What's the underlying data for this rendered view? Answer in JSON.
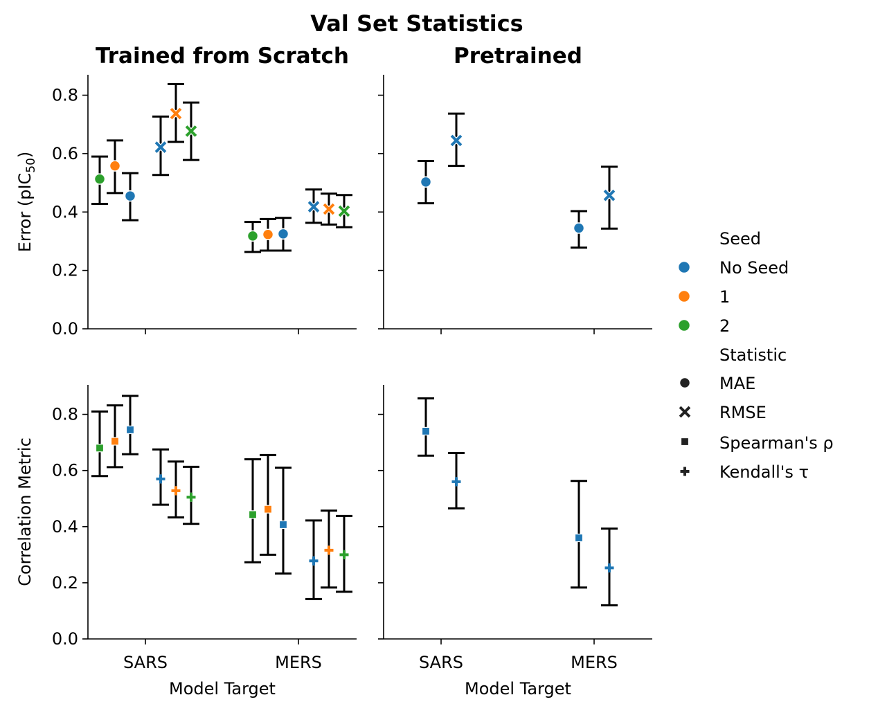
{
  "figure": {
    "suptitle": "Val Set Statistics"
  },
  "legend": {
    "seed_title": "Seed",
    "seeds": [
      {
        "label": "No Seed",
        "color": "#1f77b4"
      },
      {
        "label": "1",
        "color": "#ff7f0e"
      },
      {
        "label": "2",
        "color": "#2ca02c"
      }
    ],
    "stat_title": "Statistic",
    "stats": [
      {
        "label": "MAE",
        "marker": "circle"
      },
      {
        "label": "RMSE",
        "marker": "x"
      },
      {
        "label": "Spearman's ρ",
        "marker": "square"
      },
      {
        "label": "Kendall's τ",
        "marker": "plus"
      }
    ]
  },
  "chart_data": [
    {
      "type": "scatter",
      "title": "Trained from Scratch",
      "row": "error",
      "ylabel": "Error (pIC50)",
      "xlabel": "",
      "categories": [
        "SARS",
        "MERS"
      ],
      "ylim": [
        0,
        0.87
      ],
      "yticks": [
        "0.0",
        "0.2",
        "0.4",
        "0.6",
        "0.8"
      ],
      "points": [
        {
          "target": "SARS",
          "stat": "MAE",
          "seed": "2",
          "y": 0.513,
          "lo": 0.428,
          "hi": 0.59
        },
        {
          "target": "SARS",
          "stat": "MAE",
          "seed": "1",
          "y": 0.558,
          "lo": 0.465,
          "hi": 0.645
        },
        {
          "target": "SARS",
          "stat": "MAE",
          "seed": "No Seed",
          "y": 0.455,
          "lo": 0.372,
          "hi": 0.533
        },
        {
          "target": "SARS",
          "stat": "RMSE",
          "seed": "No Seed",
          "y": 0.622,
          "lo": 0.527,
          "hi": 0.727
        },
        {
          "target": "SARS",
          "stat": "RMSE",
          "seed": "1",
          "y": 0.737,
          "lo": 0.64,
          "hi": 0.838
        },
        {
          "target": "SARS",
          "stat": "RMSE",
          "seed": "2",
          "y": 0.677,
          "lo": 0.578,
          "hi": 0.775
        },
        {
          "target": "MERS",
          "stat": "MAE",
          "seed": "2",
          "y": 0.318,
          "lo": 0.263,
          "hi": 0.366
        },
        {
          "target": "MERS",
          "stat": "MAE",
          "seed": "1",
          "y": 0.323,
          "lo": 0.268,
          "hi": 0.376
        },
        {
          "target": "MERS",
          "stat": "MAE",
          "seed": "No Seed",
          "y": 0.325,
          "lo": 0.268,
          "hi": 0.38
        },
        {
          "target": "MERS",
          "stat": "RMSE",
          "seed": "No Seed",
          "y": 0.418,
          "lo": 0.363,
          "hi": 0.477
        },
        {
          "target": "MERS",
          "stat": "RMSE",
          "seed": "1",
          "y": 0.41,
          "lo": 0.357,
          "hi": 0.463
        },
        {
          "target": "MERS",
          "stat": "RMSE",
          "seed": "2",
          "y": 0.403,
          "lo": 0.348,
          "hi": 0.458
        }
      ]
    },
    {
      "type": "scatter",
      "title": "Pretrained",
      "row": "error",
      "ylabel": "",
      "xlabel": "",
      "categories": [
        "SARS",
        "MERS"
      ],
      "ylim": [
        0,
        0.87
      ],
      "points": [
        {
          "target": "SARS",
          "stat": "MAE",
          "seed": "No Seed",
          "y": 0.503,
          "lo": 0.43,
          "hi": 0.575
        },
        {
          "target": "SARS",
          "stat": "RMSE",
          "seed": "No Seed",
          "y": 0.645,
          "lo": 0.558,
          "hi": 0.737
        },
        {
          "target": "MERS",
          "stat": "MAE",
          "seed": "No Seed",
          "y": 0.345,
          "lo": 0.278,
          "hi": 0.403
        },
        {
          "target": "MERS",
          "stat": "RMSE",
          "seed": "No Seed",
          "y": 0.457,
          "lo": 0.343,
          "hi": 0.555
        }
      ]
    },
    {
      "type": "scatter",
      "title": "",
      "row": "correlation",
      "ylabel": "Correlation Metric",
      "xlabel": "Model Target",
      "categories": [
        "SARS",
        "MERS"
      ],
      "ylim": [
        0,
        0.905
      ],
      "yticks": [
        "0.0",
        "0.2",
        "0.4",
        "0.6",
        "0.8"
      ],
      "points": [
        {
          "target": "SARS",
          "stat": "Spearman's ρ",
          "seed": "2",
          "y": 0.68,
          "lo": 0.58,
          "hi": 0.81
        },
        {
          "target": "SARS",
          "stat": "Spearman's ρ",
          "seed": "1",
          "y": 0.704,
          "lo": 0.612,
          "hi": 0.832
        },
        {
          "target": "SARS",
          "stat": "Spearman's ρ",
          "seed": "No Seed",
          "y": 0.745,
          "lo": 0.658,
          "hi": 0.866
        },
        {
          "target": "SARS",
          "stat": "Kendall's τ",
          "seed": "No Seed",
          "y": 0.57,
          "lo": 0.478,
          "hi": 0.675
        },
        {
          "target": "SARS",
          "stat": "Kendall's τ",
          "seed": "1",
          "y": 0.528,
          "lo": 0.433,
          "hi": 0.632
        },
        {
          "target": "SARS",
          "stat": "Kendall's τ",
          "seed": "2",
          "y": 0.505,
          "lo": 0.41,
          "hi": 0.613
        },
        {
          "target": "MERS",
          "stat": "Spearman's ρ",
          "seed": "2",
          "y": 0.443,
          "lo": 0.273,
          "hi": 0.64
        },
        {
          "target": "MERS",
          "stat": "Spearman's ρ",
          "seed": "1",
          "y": 0.462,
          "lo": 0.3,
          "hi": 0.655
        },
        {
          "target": "MERS",
          "stat": "Spearman's ρ",
          "seed": "No Seed",
          "y": 0.407,
          "lo": 0.233,
          "hi": 0.61
        },
        {
          "target": "MERS",
          "stat": "Kendall's τ",
          "seed": "No Seed",
          "y": 0.278,
          "lo": 0.142,
          "hi": 0.422
        },
        {
          "target": "MERS",
          "stat": "Kendall's τ",
          "seed": "1",
          "y": 0.316,
          "lo": 0.183,
          "hi": 0.457
        },
        {
          "target": "MERS",
          "stat": "Kendall's τ",
          "seed": "2",
          "y": 0.3,
          "lo": 0.168,
          "hi": 0.438
        }
      ]
    },
    {
      "type": "scatter",
      "title": "",
      "row": "correlation",
      "ylabel": "",
      "xlabel": "Model Target",
      "categories": [
        "SARS",
        "MERS"
      ],
      "ylim": [
        0,
        0.905
      ],
      "points": [
        {
          "target": "SARS",
          "stat": "Spearman's ρ",
          "seed": "No Seed",
          "y": 0.74,
          "lo": 0.653,
          "hi": 0.857
        },
        {
          "target": "SARS",
          "stat": "Kendall's τ",
          "seed": "No Seed",
          "y": 0.56,
          "lo": 0.465,
          "hi": 0.662
        },
        {
          "target": "MERS",
          "stat": "Spearman's ρ",
          "seed": "No Seed",
          "y": 0.36,
          "lo": 0.183,
          "hi": 0.563
        },
        {
          "target": "MERS",
          "stat": "Kendall's τ",
          "seed": "No Seed",
          "y": 0.253,
          "lo": 0.12,
          "hi": 0.393
        }
      ]
    }
  ]
}
